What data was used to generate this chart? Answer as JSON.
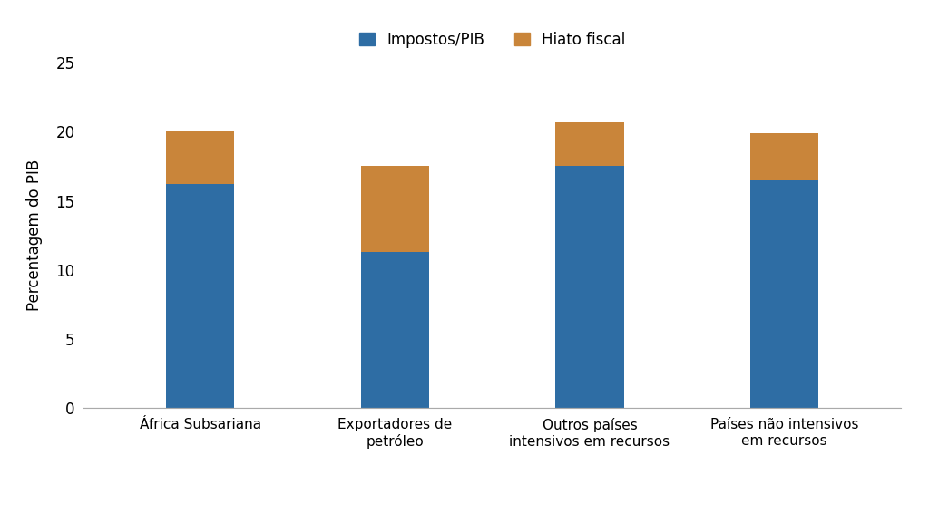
{
  "categories": [
    "África Subsariana",
    "Exportadores de\npetróleo",
    "Outros países\nintensivos em recursos",
    "Países não intensivos\nem recursos"
  ],
  "impostos_pib": [
    16.2,
    11.3,
    17.5,
    16.5
  ],
  "hiato_fiscal": [
    3.8,
    6.2,
    3.2,
    3.4
  ],
  "color_blue": "#2E6DA4",
  "color_orange": "#C9853A",
  "ylabel": "Percentagem do PIB",
  "legend_blue": "Impostos/PIB",
  "legend_orange": "Hiato fiscal",
  "ylim": [
    0,
    25
  ],
  "yticks": [
    0,
    5,
    10,
    15,
    20,
    25
  ],
  "bar_width": 0.35,
  "background_color": "#FFFFFF"
}
